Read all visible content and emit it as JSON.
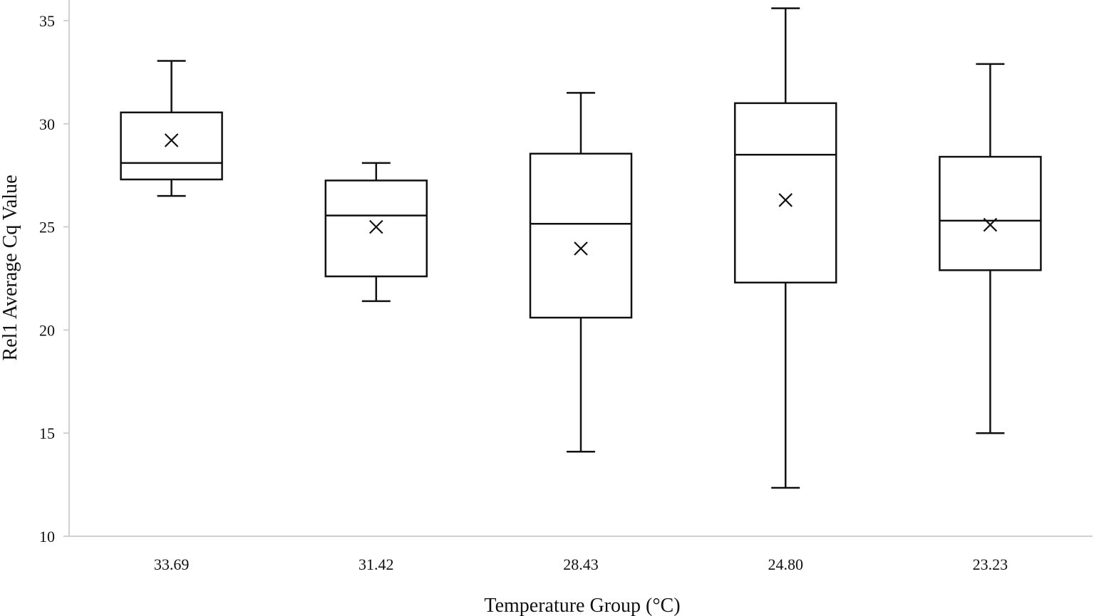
{
  "chart_data": {
    "type": "box",
    "xlabel": "Temperature Group (°C)",
    "ylabel": "Rel1 Average Cq Value",
    "ylim": [
      10,
      36
    ],
    "yticks": [
      10,
      15,
      20,
      25,
      30,
      35
    ],
    "grid": false,
    "legend": "none",
    "categories": [
      "33.69",
      "31.42",
      "28.43",
      "24.80",
      "23.23"
    ],
    "boxes": [
      {
        "category": "33.69",
        "min": 26.5,
        "q1": 27.3,
        "median": 28.1,
        "q3": 30.55,
        "max": 33.05,
        "mean": 29.2
      },
      {
        "category": "31.42",
        "min": 21.4,
        "q1": 22.6,
        "median": 25.55,
        "q3": 27.25,
        "max": 28.1,
        "mean": 25.0
      },
      {
        "category": "28.43",
        "min": 14.1,
        "q1": 20.6,
        "median": 25.15,
        "q3": 28.55,
        "max": 31.5,
        "mean": 23.95
      },
      {
        "category": "24.80",
        "min": 12.35,
        "q1": 22.3,
        "median": 28.5,
        "q3": 31.0,
        "max": 35.6,
        "mean": 26.3
      },
      {
        "category": "23.23",
        "min": 15.0,
        "q1": 22.9,
        "median": 25.3,
        "q3": 28.4,
        "max": 32.9,
        "mean": 25.1
      }
    ],
    "colors": {
      "stroke": "#111111",
      "axis": "#d0d0d0",
      "background": "#ffffff"
    }
  }
}
